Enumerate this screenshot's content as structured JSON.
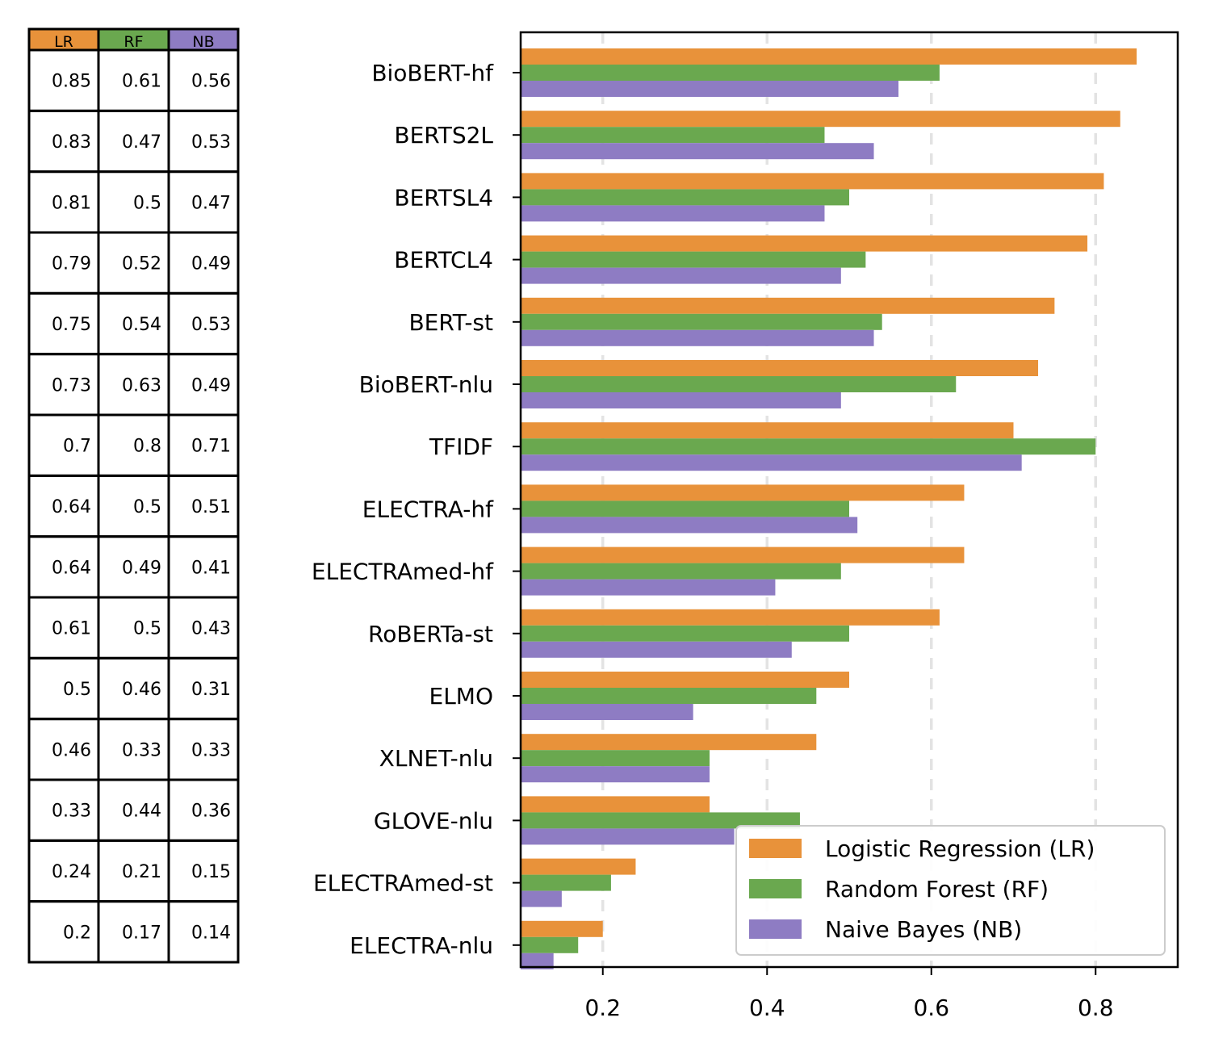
{
  "chart_data": {
    "type": "bar",
    "orientation": "horizontal",
    "categories": [
      "BioBERT-hf",
      "BERTS2L",
      "BERTSL4",
      "BERTCL4",
      "BERT-st",
      "BioBERT-nlu",
      "TFIDF",
      "ELECTRA-hf",
      "ELECTRAmed-hf",
      "RoBERTa-st",
      "ELMO",
      "XLNET-nlu",
      "GLOVE-nlu",
      "ELECTRAmed-st",
      "ELECTRA-nlu"
    ],
    "series": [
      {
        "name": "Logistic Regression (LR)",
        "short": "LR",
        "color": "#e8923a",
        "values": [
          0.85,
          0.83,
          0.81,
          0.79,
          0.75,
          0.73,
          0.7,
          0.64,
          0.64,
          0.61,
          0.5,
          0.46,
          0.33,
          0.24,
          0.2
        ]
      },
      {
        "name": "Random Forest (RF)",
        "short": "RF",
        "color": "#6aa84f",
        "values": [
          0.61,
          0.47,
          0.5,
          0.52,
          0.54,
          0.63,
          0.8,
          0.5,
          0.49,
          0.5,
          0.46,
          0.33,
          0.44,
          0.21,
          0.17
        ]
      },
      {
        "name": "Naive Bayes (NB)",
        "short": "NB",
        "color": "#8e7cc3",
        "values": [
          0.56,
          0.53,
          0.47,
          0.49,
          0.53,
          0.49,
          0.71,
          0.51,
          0.41,
          0.43,
          0.31,
          0.33,
          0.36,
          0.15,
          0.14
        ]
      }
    ],
    "table_values": [
      [
        "0.85",
        "0.61",
        "0.56"
      ],
      [
        "0.83",
        "0.47",
        "0.53"
      ],
      [
        "0.81",
        "0.5",
        "0.47"
      ],
      [
        "0.79",
        "0.52",
        "0.49"
      ],
      [
        "0.75",
        "0.54",
        "0.53"
      ],
      [
        "0.73",
        "0.63",
        "0.49"
      ],
      [
        "0.7",
        "0.8",
        "0.71"
      ],
      [
        "0.64",
        "0.5",
        "0.51"
      ],
      [
        "0.64",
        "0.49",
        "0.41"
      ],
      [
        "0.61",
        "0.5",
        "0.43"
      ],
      [
        "0.5",
        "0.46",
        "0.31"
      ],
      [
        "0.46",
        "0.33",
        "0.33"
      ],
      [
        "0.33",
        "0.44",
        "0.36"
      ],
      [
        "0.24",
        "0.21",
        "0.15"
      ],
      [
        "0.2",
        "0.17",
        "0.14"
      ]
    ],
    "xlim": [
      0.1,
      0.9
    ],
    "xticks": [
      0.2,
      0.4,
      0.6,
      0.8
    ],
    "xtick_labels": [
      "0.2",
      "0.4",
      "0.6",
      "0.8"
    ],
    "grid": "x-dashed",
    "legend_position": "bottom-right",
    "title": "",
    "xlabel": "",
    "ylabel": ""
  }
}
